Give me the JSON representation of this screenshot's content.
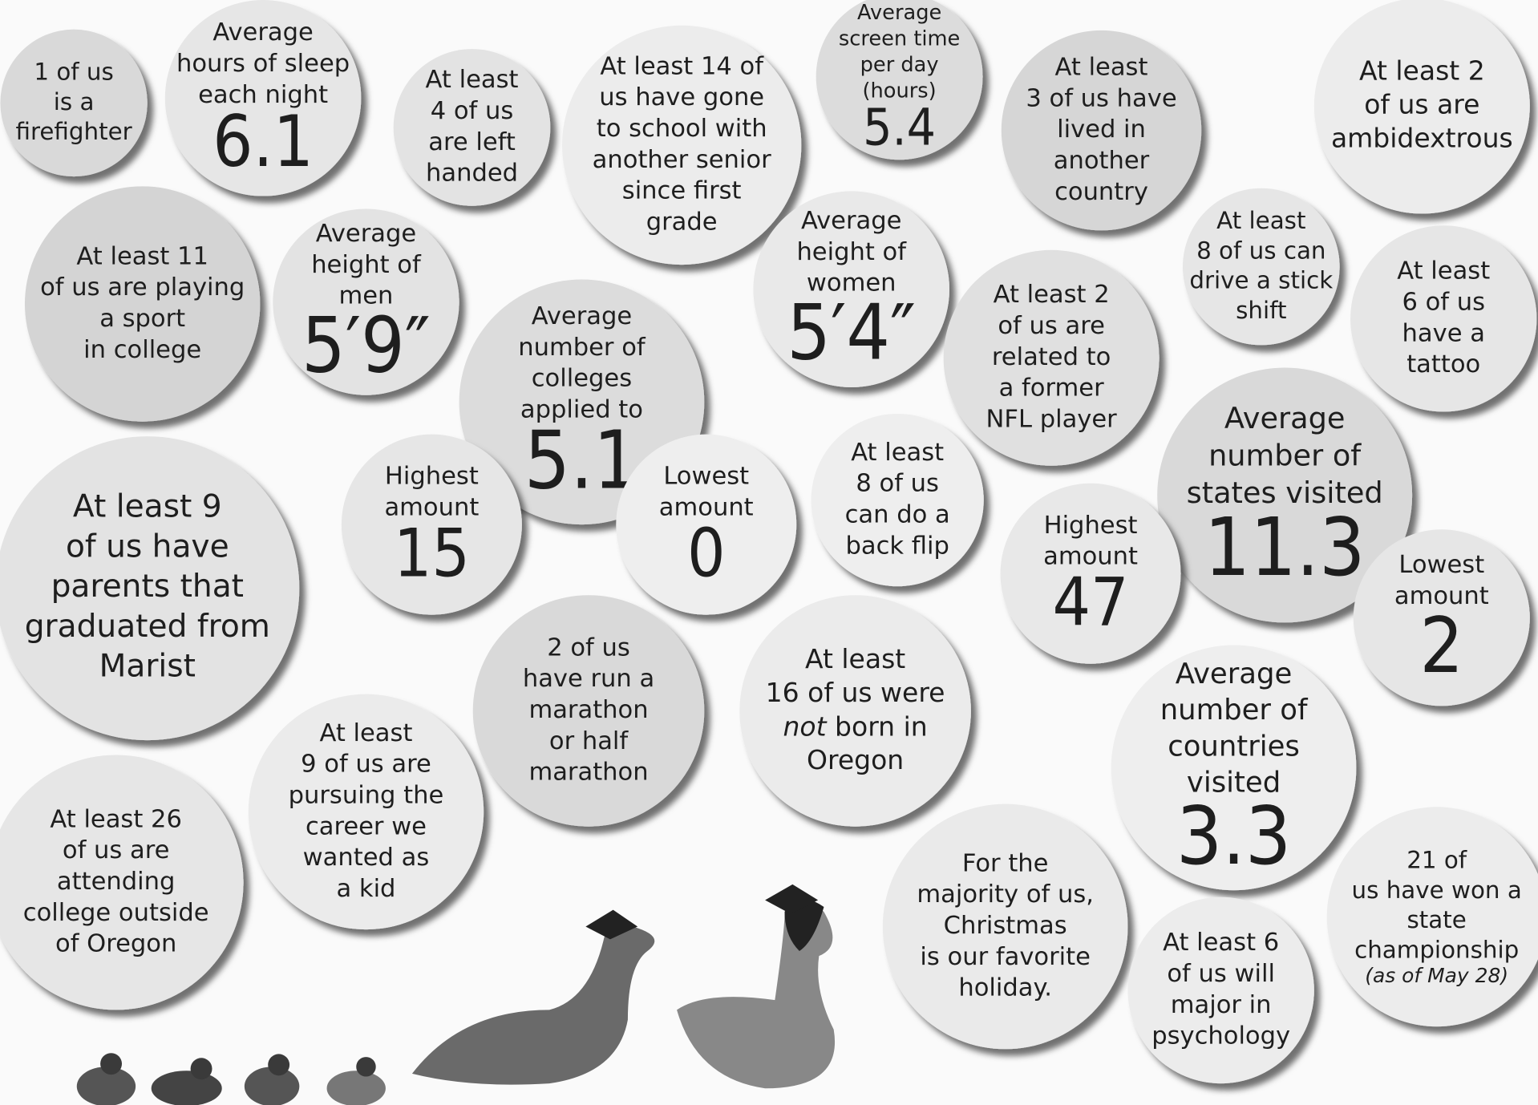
{
  "bubbles": [
    {
      "lines": [
        "1 of us",
        "is a",
        "firefighter"
      ]
    },
    {
      "lines": [
        "Average",
        "hours of sleep",
        "each night"
      ],
      "value": "6.1"
    },
    {
      "lines": [
        "At least",
        "4 of us",
        "are left",
        "handed"
      ]
    },
    {
      "lines": [
        "At least 14 of",
        "us have gone",
        "to school with",
        "another senior",
        "since first",
        "grade"
      ]
    },
    {
      "lines": [
        "Average",
        "screen time",
        "per day",
        "(hours)"
      ],
      "value": "5.4"
    },
    {
      "lines": [
        "At least",
        "3 of us have",
        "lived in",
        "another",
        "country"
      ]
    },
    {
      "lines": [
        "At least 2",
        "of us are",
        "ambidextrous"
      ]
    },
    {
      "lines": [
        "At least 11",
        "of us are playing",
        "a sport",
        "in college"
      ]
    },
    {
      "lines": [
        "Average",
        "height of",
        "men"
      ],
      "value": "5′9″"
    },
    {
      "lines": [
        "Average",
        "number of",
        "colleges",
        "applied to"
      ],
      "value": "5.1"
    },
    {
      "lines": [
        "Average",
        "height of",
        "women"
      ],
      "value": "5′4″"
    },
    {
      "lines": [
        "At least",
        "8 of us can",
        "drive a stick",
        "shift"
      ]
    },
    {
      "lines": [
        "At least 2",
        "of us are",
        "related to",
        "a former",
        "NFL player"
      ]
    },
    {
      "lines": [
        "At least",
        "6 of us",
        "have a",
        "tattoo"
      ]
    },
    {
      "lines": [
        "At least 9",
        "of us have",
        "parents that",
        "graduated from",
        "Marist"
      ]
    },
    {
      "lines": [
        "Highest",
        "amount"
      ],
      "value": "15"
    },
    {
      "lines": [
        "Lowest",
        "amount"
      ],
      "value": "0"
    },
    {
      "lines": [
        "At least",
        "8 of us",
        "can do a",
        "back flip"
      ]
    },
    {
      "lines": [
        "Average",
        "number of",
        "states visited"
      ],
      "value": "11.3"
    },
    {
      "lines": [
        "Highest",
        "amount"
      ],
      "value": "47"
    },
    {
      "lines": [
        "Lowest",
        "amount"
      ],
      "value": "2"
    },
    {
      "lines": [
        "2 of us",
        "have run a",
        "marathon",
        "or half",
        "marathon"
      ]
    },
    {
      "lines": [
        "At least",
        "16 of us were",
        [
          "not",
          " born in"
        ],
        "Oregon"
      ]
    },
    {
      "lines": [
        "Average",
        "number of",
        "countries",
        "visited"
      ],
      "value": "3.3"
    },
    {
      "lines": [
        "At least 26",
        "of us are",
        "attending",
        "college outside",
        "of Oregon"
      ]
    },
    {
      "lines": [
        "At least",
        "9 of us are",
        "pursuing the",
        "career we",
        "wanted as",
        "a kid"
      ]
    },
    {
      "lines": [
        "For the",
        "majority of us,",
        "Christmas",
        "is our favorite",
        "holiday."
      ]
    },
    {
      "lines": [
        "21 of",
        "us have won a",
        "state",
        "championship"
      ],
      "note": "(as of May 28)"
    },
    {
      "lines": [
        "At least 6",
        "of us will",
        "major in",
        "psychology"
      ]
    }
  ]
}
